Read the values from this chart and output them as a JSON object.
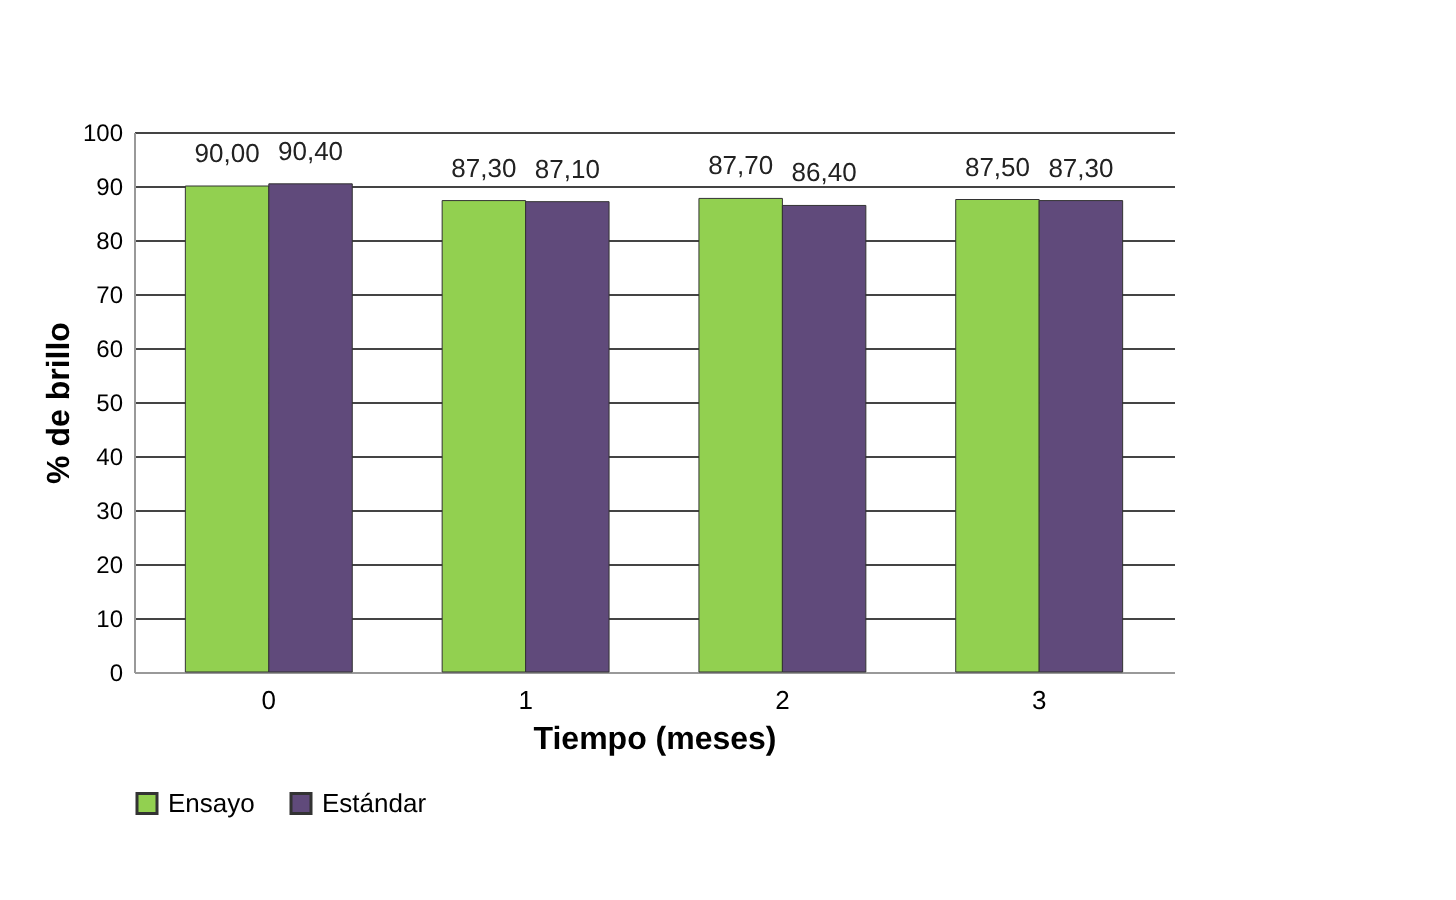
{
  "chart_data": {
    "type": "bar",
    "xlabel": "Tiempo (meses)",
    "ylabel": "% de brillo",
    "categories": [
      "0",
      "1",
      "2",
      "3"
    ],
    "series": [
      {
        "name": "Ensayo",
        "color": "#92d050",
        "values": [
          90.0,
          87.3,
          87.7,
          87.5
        ],
        "value_labels": [
          "90,00",
          "87,30",
          "87,70",
          "87,50"
        ]
      },
      {
        "name": "Estándar",
        "color": "#604a7b",
        "values": [
          90.4,
          87.1,
          86.4,
          87.3
        ],
        "value_labels": [
          "90,40",
          "87,10",
          "86,40",
          "87,30"
        ]
      }
    ],
    "ylim": [
      0,
      100
    ],
    "yticks": [
      0,
      10,
      20,
      30,
      40,
      50,
      60,
      70,
      80,
      90,
      100
    ],
    "grid": "y",
    "legend": "bottom left"
  }
}
